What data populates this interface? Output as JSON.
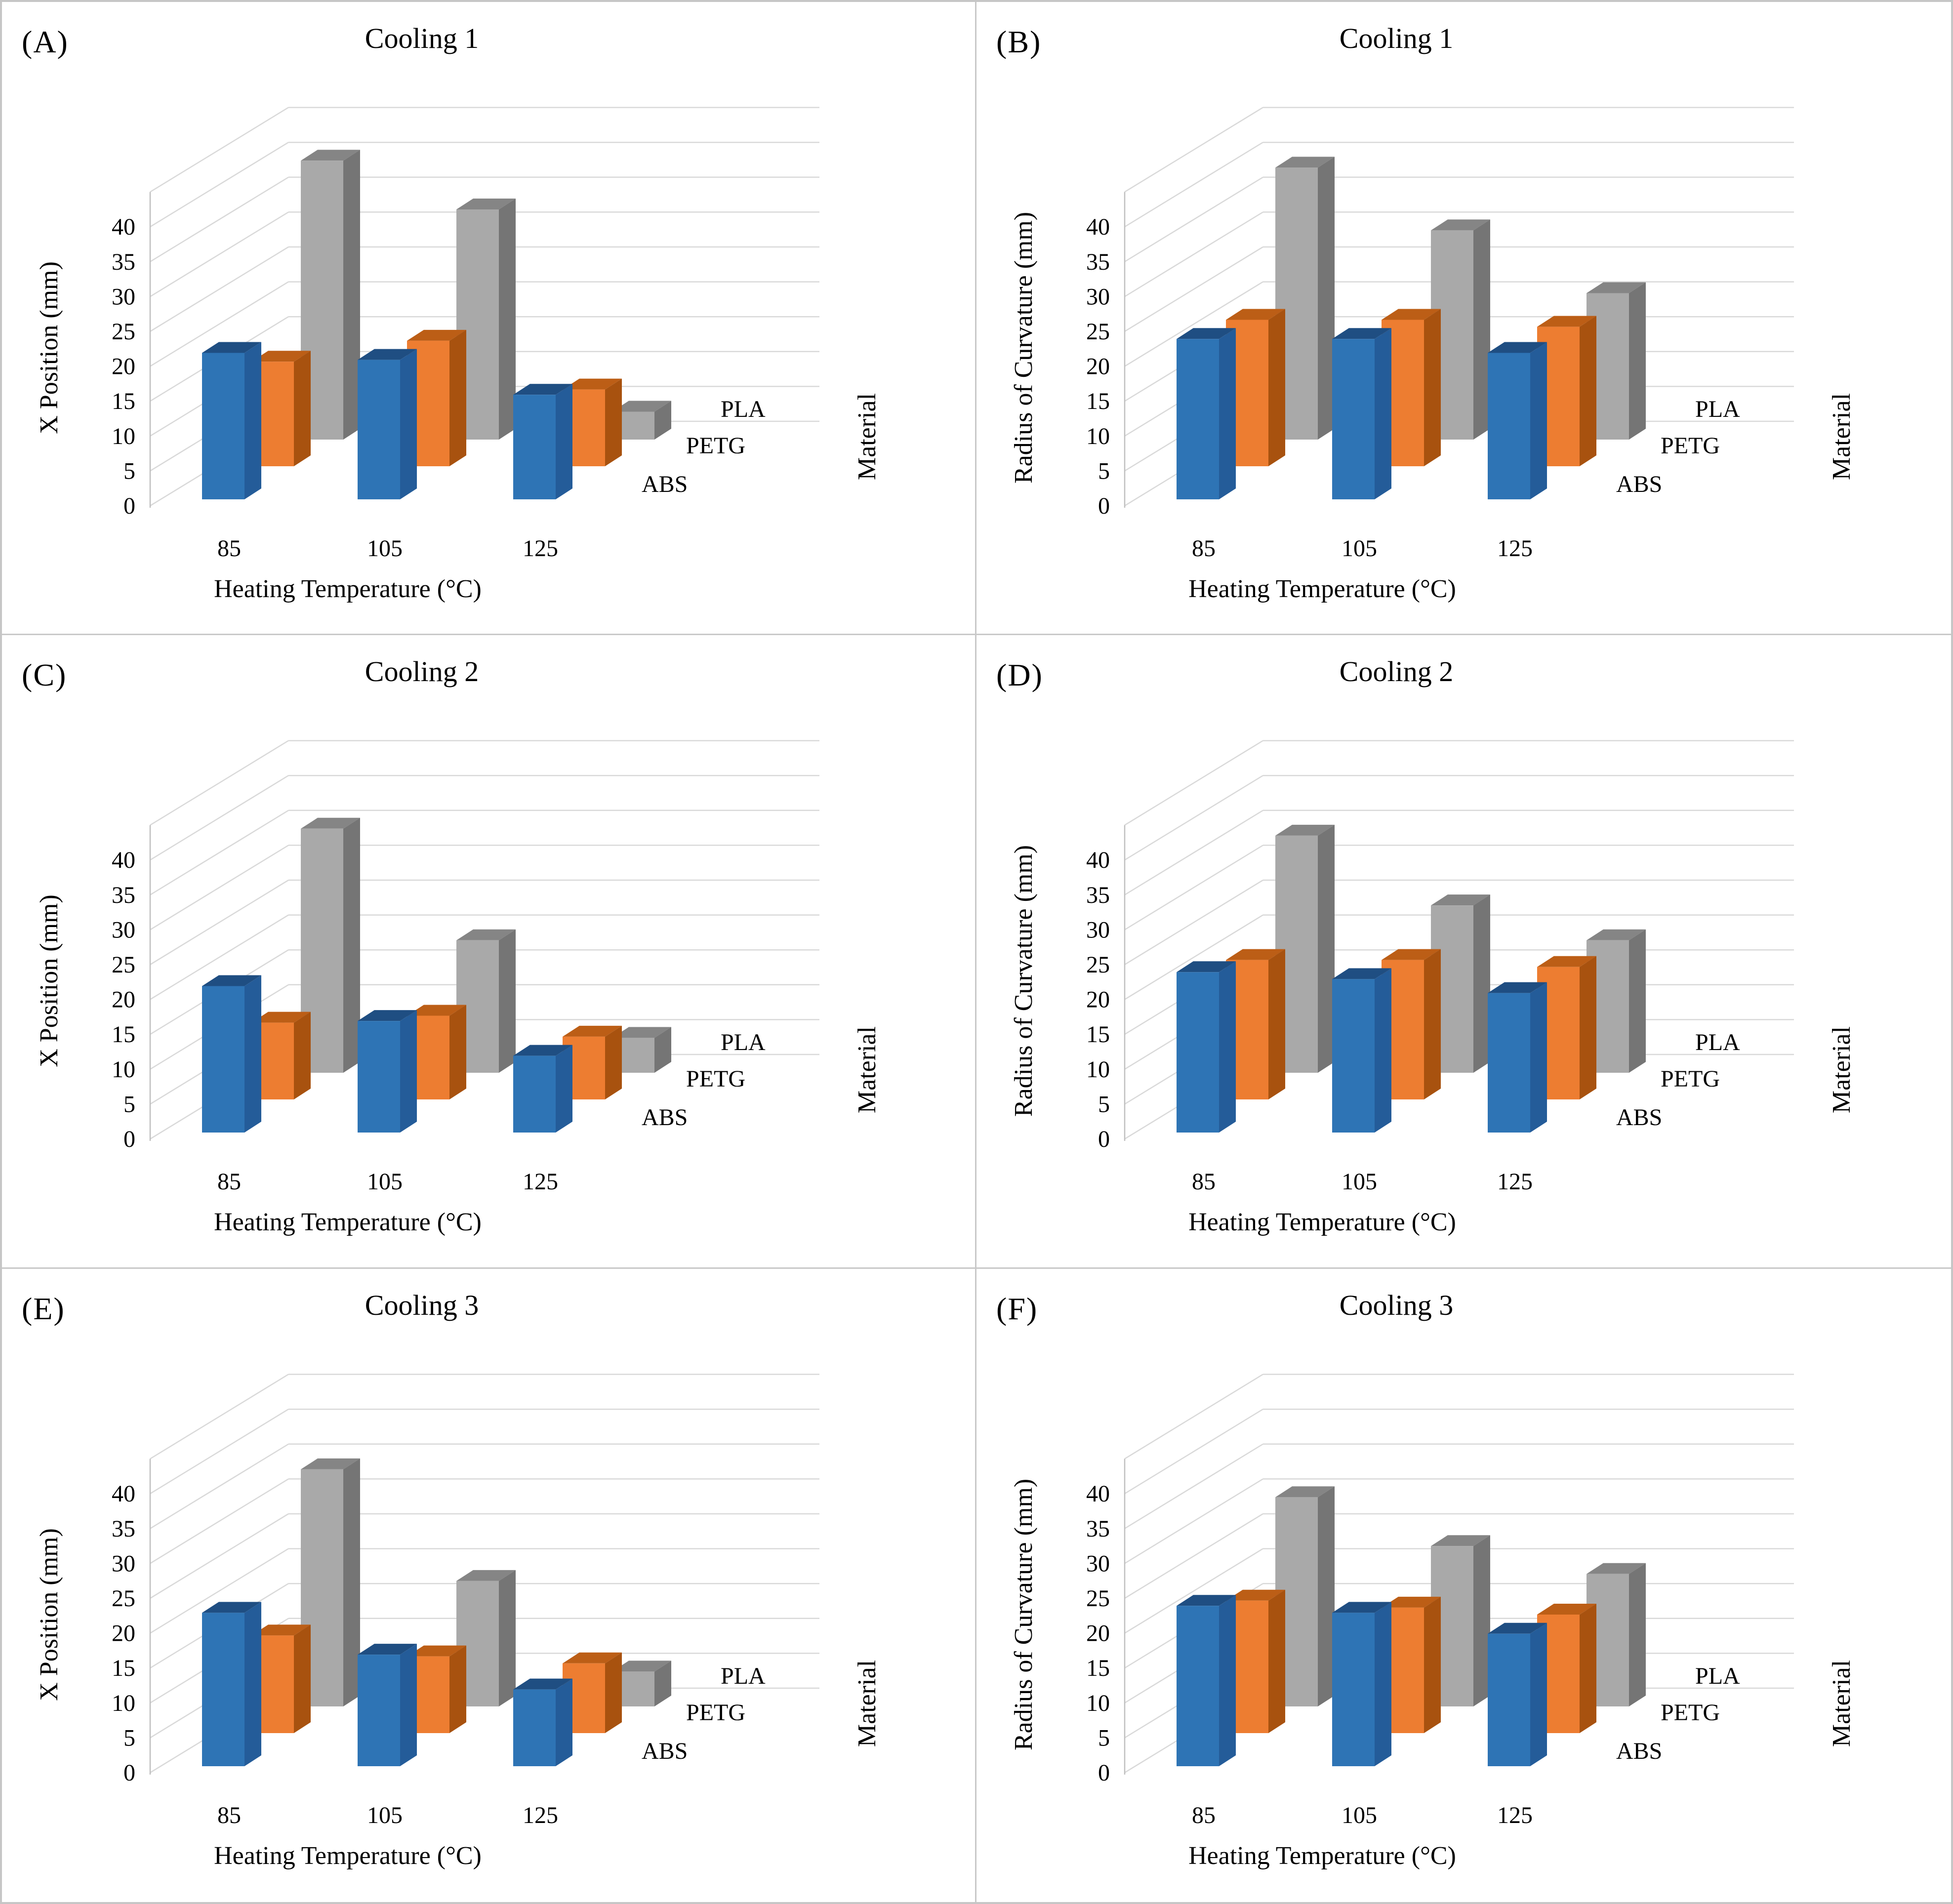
{
  "figure": {
    "border_color": "#c6c6c6",
    "background": "#ffffff"
  },
  "series_colors": {
    "ABS": {
      "front": "#2E74B5",
      "top": "#1F4E82",
      "side": "#245C99"
    },
    "PETG": {
      "front": "#ED7D31",
      "top": "#BC5E16",
      "side": "#A8520F"
    },
    "PLA": {
      "front": "#A9A9A9",
      "top": "#858585",
      "side": "#757575"
    }
  },
  "chart_data": [
    {
      "panel_label": "(A)",
      "title": "Cooling 1",
      "type": "bar",
      "ylabel": "X Position (mm)",
      "xlabel": "Heating Temperature (°C)",
      "depth_label": "Material",
      "categories": [
        "85",
        "105",
        "125"
      ],
      "yticks": [
        0,
        5,
        10,
        15,
        20,
        25,
        30,
        35,
        40
      ],
      "ylim": [
        0,
        45
      ],
      "grid": true,
      "legend_position": "depth-axis-rows",
      "series": [
        {
          "name": "ABS",
          "values": [
            21,
            20,
            15
          ]
        },
        {
          "name": "PETG",
          "values": [
            15,
            18,
            11
          ]
        },
        {
          "name": "PLA",
          "values": [
            40,
            33,
            4
          ]
        }
      ]
    },
    {
      "panel_label": "(B)",
      "title": "Cooling 1",
      "type": "bar",
      "ylabel": "Radius of Curvature (mm)",
      "xlabel": "Heating Temperature (°C)",
      "depth_label": "Material",
      "categories": [
        "85",
        "105",
        "125"
      ],
      "yticks": [
        0,
        5,
        10,
        15,
        20,
        25,
        30,
        35,
        40
      ],
      "ylim": [
        0,
        45
      ],
      "grid": true,
      "legend_position": "depth-axis-rows",
      "series": [
        {
          "name": "ABS",
          "values": [
            23,
            23,
            21
          ]
        },
        {
          "name": "PETG",
          "values": [
            21,
            21,
            20
          ]
        },
        {
          "name": "PLA",
          "values": [
            39,
            30,
            21
          ]
        }
      ]
    },
    {
      "panel_label": "(C)",
      "title": "Cooling 2",
      "type": "bar",
      "ylabel": "X Position (mm)",
      "xlabel": "Heating Temperature (°C)",
      "depth_label": "Material",
      "categories": [
        "85",
        "105",
        "125"
      ],
      "yticks": [
        0,
        5,
        10,
        15,
        20,
        25,
        30,
        35,
        40
      ],
      "ylim": [
        0,
        45
      ],
      "grid": true,
      "legend_position": "depth-axis-rows",
      "series": [
        {
          "name": "ABS",
          "values": [
            21,
            16,
            11
          ]
        },
        {
          "name": "PETG",
          "values": [
            11,
            12,
            9
          ]
        },
        {
          "name": "PLA",
          "values": [
            35,
            19,
            5
          ]
        }
      ]
    },
    {
      "panel_label": "(D)",
      "title": "Cooling 2",
      "type": "bar",
      "ylabel": "Radius of Curvature (mm)",
      "xlabel": "Heating Temperature (°C)",
      "depth_label": "Material",
      "categories": [
        "85",
        "105",
        "125"
      ],
      "yticks": [
        0,
        5,
        10,
        15,
        20,
        25,
        30,
        35,
        40
      ],
      "ylim": [
        0,
        45
      ],
      "grid": true,
      "legend_position": "depth-axis-rows",
      "series": [
        {
          "name": "ABS",
          "values": [
            23,
            22,
            20
          ]
        },
        {
          "name": "PETG",
          "values": [
            20,
            20,
            19
          ]
        },
        {
          "name": "PLA",
          "values": [
            34,
            24,
            19
          ]
        }
      ]
    },
    {
      "panel_label": "(E)",
      "title": "Cooling 3",
      "type": "bar",
      "ylabel": "X Position (mm)",
      "xlabel": "Heating Temperature (°C)",
      "depth_label": "Material",
      "categories": [
        "85",
        "105",
        "125"
      ],
      "yticks": [
        0,
        5,
        10,
        15,
        20,
        25,
        30,
        35,
        40
      ],
      "ylim": [
        0,
        45
      ],
      "grid": true,
      "legend_position": "depth-axis-rows",
      "series": [
        {
          "name": "ABS",
          "values": [
            22,
            16,
            11
          ]
        },
        {
          "name": "PETG",
          "values": [
            14,
            11,
            10
          ]
        },
        {
          "name": "PLA",
          "values": [
            34,
            18,
            5
          ]
        }
      ]
    },
    {
      "panel_label": "(F)",
      "title": "Cooling 3",
      "type": "bar",
      "ylabel": "Radius of Curvature (mm)",
      "xlabel": "Heating Temperature (°C)",
      "depth_label": "Material",
      "categories": [
        "85",
        "105",
        "125"
      ],
      "yticks": [
        0,
        5,
        10,
        15,
        20,
        25,
        30,
        35,
        40
      ],
      "ylim": [
        0,
        45
      ],
      "grid": true,
      "legend_position": "depth-axis-rows",
      "series": [
        {
          "name": "ABS",
          "values": [
            23,
            22,
            19
          ]
        },
        {
          "name": "PETG",
          "values": [
            19,
            18,
            17
          ]
        },
        {
          "name": "PLA",
          "values": [
            30,
            23,
            19
          ]
        }
      ]
    }
  ]
}
